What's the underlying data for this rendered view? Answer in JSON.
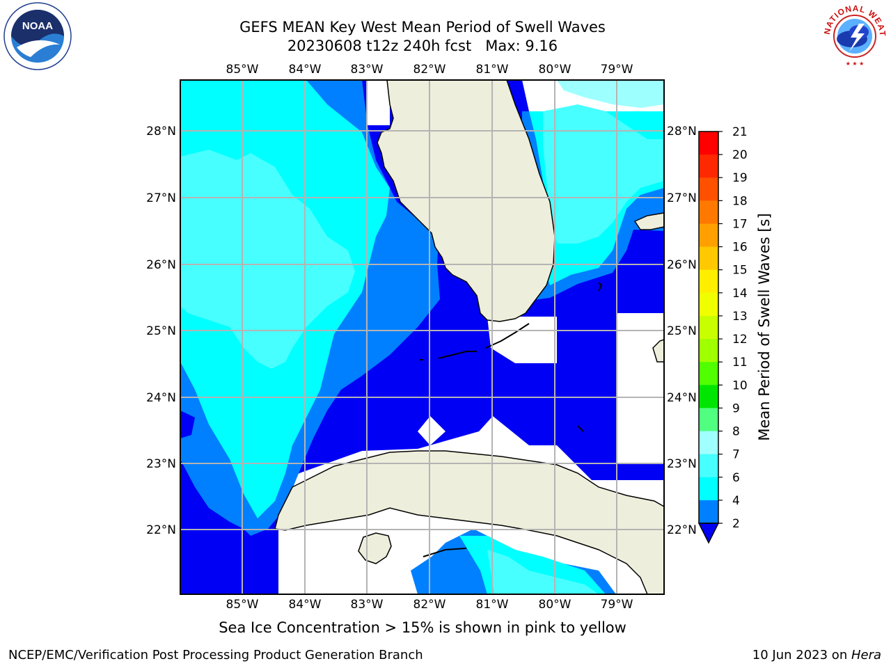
{
  "title": {
    "line1": "GEFS MEAN Key West Mean Period of Swell Waves",
    "line2": "20230608 t12z 240h fcst   Max: 9.16"
  },
  "map": {
    "lon_ticks": [
      "85°W",
      "84°W",
      "83°W",
      "82°W",
      "81°W",
      "80°W",
      "79°W"
    ],
    "lat_ticks": [
      "28°N",
      "27°N",
      "26°N",
      "25°N",
      "24°N",
      "23°N",
      "22°N"
    ],
    "colors": {
      "land": "#eeeedc",
      "grid": "#b4b4b4",
      "band_2_4": "#0000f5",
      "band_4_6": "#0080ff",
      "band_6_7": "#00ffff",
      "band_7_8": "#48ffff",
      "band_8_9": "#9effff"
    }
  },
  "colorbar": {
    "title": "Mean Period of Swell Waves [s]",
    "levels": [
      "21",
      "20",
      "19",
      "18",
      "17",
      "16",
      "15",
      "14",
      "13",
      "12",
      "11",
      "10",
      "9",
      "8",
      "7",
      "6",
      "4",
      "2"
    ],
    "colors_top_to_bottom": [
      "#ff0000",
      "#ff2800",
      "#ff5000",
      "#ff7800",
      "#ffa000",
      "#ffc800",
      "#ffee00",
      "#f0ff00",
      "#c8ff00",
      "#a0ff00",
      "#50ff00",
      "#00e600",
      "#50ff80",
      "#a0ffff",
      "#48ffff",
      "#00ffff",
      "#0080ff"
    ],
    "underflow_color": "#0000f5"
  },
  "caption": "Sea Ice Concentration > 15% is shown in pink to yellow",
  "footer": {
    "left": "NCEP/EMC/Verification Post Processing Product Generation Branch",
    "right_date": "10 Jun 2023 on ",
    "right_host": "Hera"
  },
  "logos": {
    "noaa_text": "NOAA",
    "nws_text": "NATIONAL WEATHER SERVICE"
  }
}
